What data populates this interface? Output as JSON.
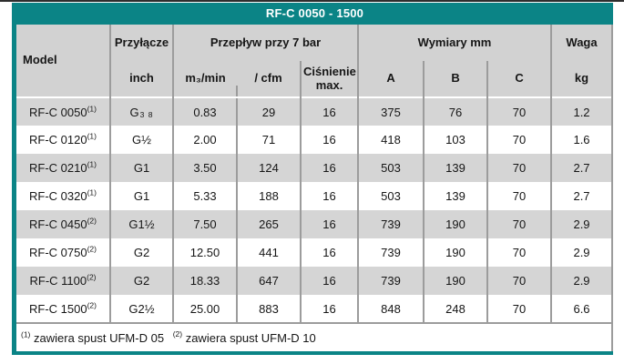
{
  "title": "RF-C 0050 - 1500",
  "colors": {
    "teal": "#0B8486",
    "header_bg": "#D2D2D2",
    "row_alt_bg": "#D5D5D5",
    "row_bg": "#FFFFFF",
    "divider": "#9C9C9C",
    "top_line": "#2E2E2E",
    "title_text": "#FFFFFF"
  },
  "table": {
    "header": {
      "model": "Model",
      "connection_group": "Przyłącze",
      "connection_unit": "inch",
      "flow_group": "Przepływ przy 7 bar",
      "flow_m3min": "m₃/min",
      "flow_cfm": "/ cfm",
      "pressure": "Ciśnienie max.",
      "dimensions_group": "Wymiary mm",
      "dim_a": "A",
      "dim_b": "B",
      "dim_c": "C",
      "weight_group": "Waga",
      "weight_unit": "kg"
    },
    "rows": [
      {
        "model": "RF-C 0050",
        "note": "(1)",
        "conn": "G",
        "conn_sub": "3 8",
        "m3min": "0.83",
        "cfm": "29",
        "pressure": "16",
        "a": "375",
        "b": "76",
        "c": "70",
        "kg": "1.2"
      },
      {
        "model": "RF-C 0120",
        "note": "(1)",
        "conn": "G½",
        "conn_sub": "",
        "m3min": "2.00",
        "cfm": "71",
        "pressure": "16",
        "a": "418",
        "b": "103",
        "c": "70",
        "kg": "1.6"
      },
      {
        "model": "RF-C 0210",
        "note": "(1)",
        "conn": "G1",
        "conn_sub": "",
        "m3min": "3.50",
        "cfm": "124",
        "pressure": "16",
        "a": "503",
        "b": "139",
        "c": "70",
        "kg": "2.7"
      },
      {
        "model": "RF-C 0320",
        "note": "(1)",
        "conn": "G1",
        "conn_sub": "",
        "m3min": "5.33",
        "cfm": "188",
        "pressure": "16",
        "a": "503",
        "b": "139",
        "c": "70",
        "kg": "2.7"
      },
      {
        "model": "RF-C 0450",
        "note": "(2)",
        "conn": "G1½",
        "conn_sub": "",
        "m3min": "7.50",
        "cfm": "265",
        "pressure": "16",
        "a": "739",
        "b": "190",
        "c": "70",
        "kg": "2.9"
      },
      {
        "model": "RF-C 0750",
        "note": "(2)",
        "conn": "G2",
        "conn_sub": "",
        "m3min": "12.50",
        "cfm": "441",
        "pressure": "16",
        "a": "739",
        "b": "190",
        "c": "70",
        "kg": "2.9"
      },
      {
        "model": "RF-C 1100",
        "note": "(2)",
        "conn": "G2",
        "conn_sub": "",
        "m3min": "18.33",
        "cfm": "647",
        "pressure": "16",
        "a": "739",
        "b": "190",
        "c": "70",
        "kg": "2.9"
      },
      {
        "model": "RF-C 1500",
        "note": "(2)",
        "conn": "G2½",
        "conn_sub": "",
        "m3min": "25.00",
        "cfm": "883",
        "pressure": "16",
        "a": "848",
        "b": "248",
        "c": "70",
        "kg": "6.6"
      }
    ],
    "footnotes": [
      {
        "marker": "(1)",
        "text": "zawiera spust UFM-D 05"
      },
      {
        "marker": "(2)",
        "text": "zawiera spust UFM-D 10"
      }
    ]
  }
}
